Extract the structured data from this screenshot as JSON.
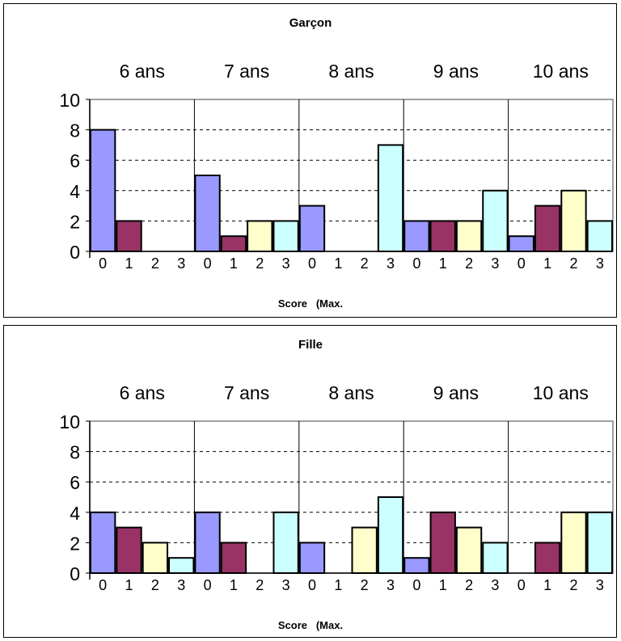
{
  "chart_data": [
    {
      "type": "bar",
      "title": "Garçon",
      "xlabel": "Score   (Max.",
      "ylabel": "",
      "ylim": [
        0,
        10
      ],
      "yticks": [
        0,
        2,
        4,
        6,
        8,
        10
      ],
      "grid": true,
      "groups": [
        "6 ans",
        "7 ans",
        "8 ans",
        "9 ans",
        "10 ans"
      ],
      "categories": [
        "0",
        "1",
        "2",
        "3"
      ],
      "colors": [
        "#9999ff",
        "#993366",
        "#ffffcc",
        "#ccffff"
      ],
      "values": [
        [
          8,
          2,
          0,
          0
        ],
        [
          5,
          1,
          2,
          2
        ],
        [
          3,
          0,
          0,
          7
        ],
        [
          2,
          2,
          2,
          4
        ],
        [
          1,
          3,
          4,
          2
        ]
      ]
    },
    {
      "type": "bar",
      "title": "Fille",
      "xlabel": "Score   (Max.",
      "ylabel": "",
      "ylim": [
        0,
        10
      ],
      "yticks": [
        0,
        2,
        4,
        6,
        8,
        10
      ],
      "grid": true,
      "groups": [
        "6 ans",
        "7 ans",
        "8 ans",
        "9 ans",
        "10 ans"
      ],
      "categories": [
        "0",
        "1",
        "2",
        "3"
      ],
      "colors": [
        "#9999ff",
        "#993366",
        "#ffffcc",
        "#ccffff"
      ],
      "values": [
        [
          4,
          3,
          2,
          1
        ],
        [
          4,
          2,
          0,
          4
        ],
        [
          2,
          0,
          3,
          5
        ],
        [
          1,
          4,
          3,
          2
        ],
        [
          0,
          2,
          4,
          4
        ]
      ]
    }
  ]
}
